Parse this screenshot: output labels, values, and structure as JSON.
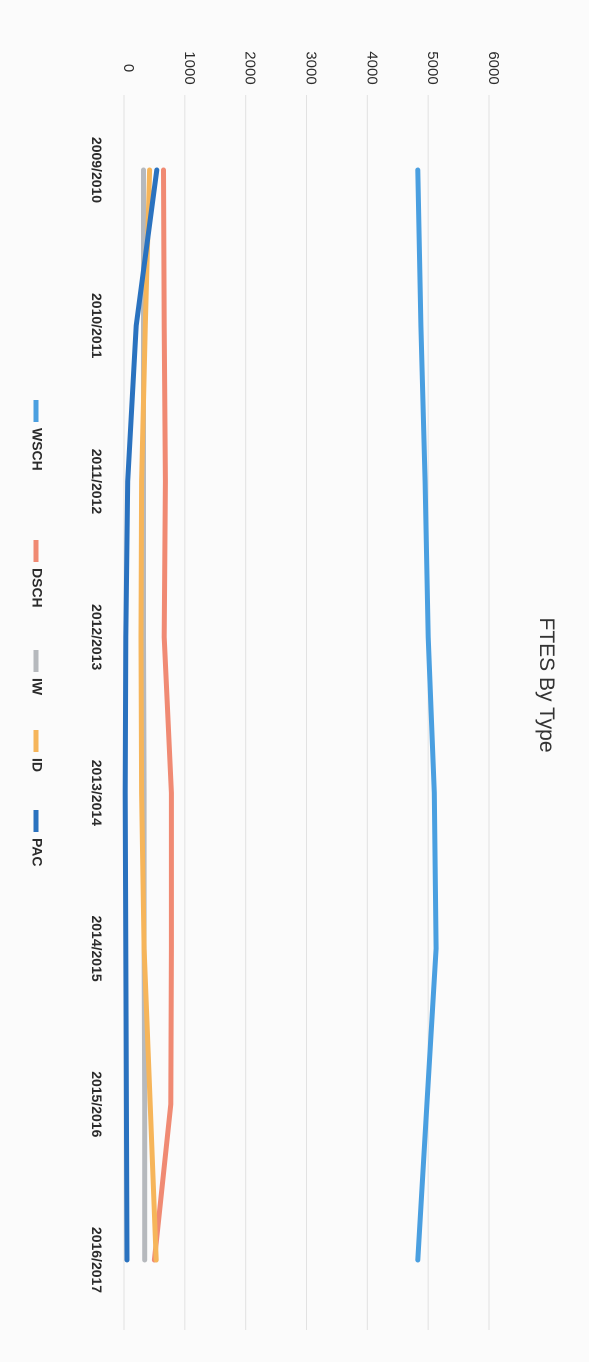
{
  "chart_data": {
    "type": "line",
    "title": "FTES By Type",
    "xlabel": "",
    "ylabel": "",
    "categories": [
      "2009/2010",
      "2010/2011",
      "2011/2012",
      "2012/2013",
      "2013/2014",
      "2014/2015",
      "2015/2016",
      "2016/2017"
    ],
    "ylim": [
      0,
      6000
    ],
    "yticks": [
      0,
      1000,
      2000,
      3000,
      4000,
      5000,
      6000
    ],
    "grid": true,
    "legend_position": "bottom",
    "series": [
      {
        "name": "WSCH",
        "color": "#4a9fe0",
        "values": [
          4830,
          4880,
          4950,
          5000,
          5100,
          5130,
          4980,
          4830
        ]
      },
      {
        "name": "DSCH",
        "color": "#f08a73",
        "values": [
          650,
          660,
          680,
          660,
          780,
          780,
          770,
          500
        ]
      },
      {
        "name": "IW",
        "color": "#b6b9bd",
        "values": [
          320,
          320,
          320,
          320,
          330,
          330,
          340,
          340
        ]
      },
      {
        "name": "ID",
        "color": "#f6b55a",
        "values": [
          420,
          350,
          290,
          280,
          290,
          330,
          430,
          530
        ]
      },
      {
        "name": "PAC",
        "color": "#2a72bf",
        "values": [
          540,
          200,
          60,
          30,
          20,
          30,
          40,
          50
        ]
      }
    ]
  }
}
